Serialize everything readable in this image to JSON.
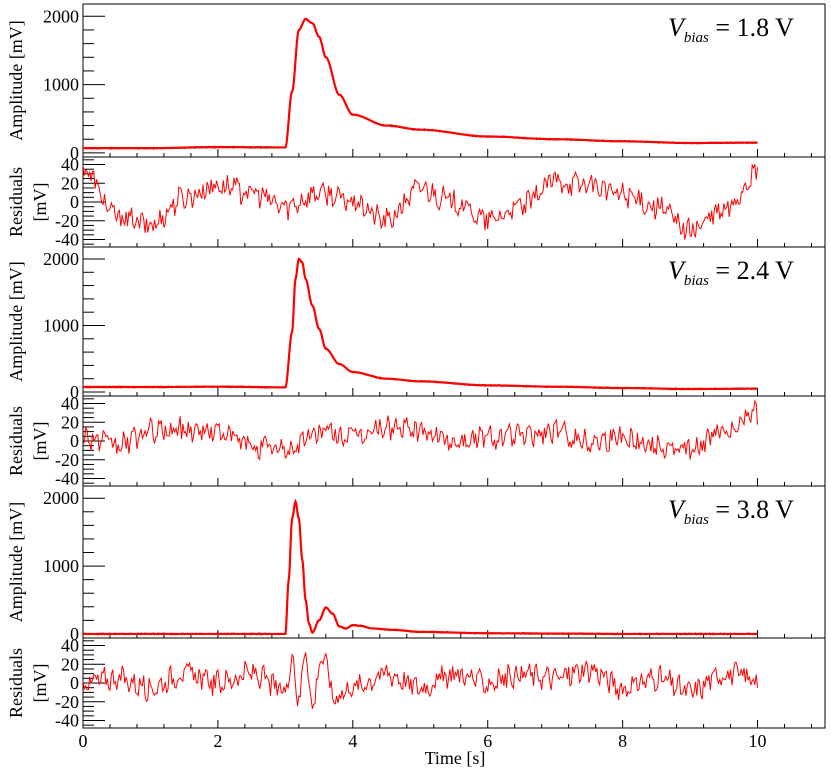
{
  "chart_data": [
    {
      "type": "line",
      "panel": "amplitude",
      "annotation": {
        "symbol": "V",
        "subscript": "bias",
        "text": " = 1.8 V"
      },
      "ylabel": "Amplitude [mV]",
      "yticks": [
        "0",
        "1000",
        "2000"
      ],
      "ylim": [
        -60,
        2180
      ],
      "xlim": [
        0,
        11
      ],
      "x": [
        0,
        1,
        2,
        3,
        3.1,
        3.2,
        3.3,
        3.4,
        3.5,
        3.6,
        3.8,
        4.0,
        4.5,
        5,
        6,
        7,
        8,
        9,
        10
      ],
      "series": [
        {
          "values": [
            70,
            70,
            85,
            80,
            900,
            1800,
            1960,
            1900,
            1700,
            1400,
            850,
            560,
            400,
            340,
            240,
            200,
            170,
            145,
            150
          ]
        }
      ],
      "colors": {
        "fit": "#ff0000",
        "data": "#000000"
      }
    },
    {
      "type": "line",
      "panel": "residuals",
      "ylabel_lines": [
        "Residuals",
        "[mV]"
      ],
      "yticks": [
        "-40",
        "-20",
        "0",
        "20",
        "40"
      ],
      "ylim": [
        -48,
        48
      ],
      "xlim": [
        0,
        11
      ],
      "x": [
        0,
        0.5,
        1,
        1.5,
        2,
        2.5,
        3,
        3.5,
        4,
        4.5,
        5,
        5.5,
        6,
        6.5,
        7,
        7.5,
        8,
        8.5,
        9,
        9.5,
        10
      ],
      "series": [
        {
          "values": [
            35,
            -15,
            -25,
            5,
            18,
            10,
            -5,
            10,
            0,
            -20,
            15,
            0,
            -20,
            -5,
            22,
            18,
            8,
            -5,
            -30,
            -10,
            30
          ]
        }
      ],
      "colors": {
        "line": "#ff0000"
      }
    },
    {
      "type": "line",
      "panel": "amplitude",
      "annotation": {
        "symbol": "V",
        "subscript": "bias",
        "text": " = 2.4 V"
      },
      "ylabel": "Amplitude [mV]",
      "yticks": [
        "0",
        "1000",
        "2000"
      ],
      "ylim": [
        -60,
        2180
      ],
      "xlim": [
        0,
        11
      ],
      "x": [
        0,
        1,
        2,
        3,
        3.1,
        3.15,
        3.2,
        3.25,
        3.3,
        3.4,
        3.5,
        3.6,
        3.8,
        4.0,
        4.5,
        5,
        6,
        7,
        8,
        9,
        10
      ],
      "series": [
        {
          "values": [
            75,
            75,
            80,
            70,
            900,
            1700,
            2000,
            1950,
            1700,
            1300,
            950,
            650,
            420,
            300,
            200,
            160,
            100,
            80,
            60,
            45,
            50
          ]
        }
      ],
      "colors": {
        "fit": "#ff0000",
        "data": "#000000"
      }
    },
    {
      "type": "line",
      "panel": "residuals",
      "ylabel_lines": [
        "Residuals",
        "[mV]"
      ],
      "yticks": [
        "-40",
        "-20",
        "0",
        "20",
        "40"
      ],
      "ylim": [
        -48,
        48
      ],
      "xlim": [
        0,
        11
      ],
      "x": [
        0,
        0.5,
        1,
        1.5,
        2,
        2.5,
        3,
        3.5,
        4,
        4.5,
        5,
        5.5,
        6,
        6.5,
        7,
        7.5,
        8,
        8.5,
        9,
        9.5,
        10
      ],
      "series": [
        {
          "values": [
            5,
            -5,
            10,
            12,
            10,
            -5,
            -10,
            10,
            5,
            15,
            10,
            0,
            5,
            5,
            10,
            0,
            5,
            -5,
            -10,
            10,
            30
          ]
        }
      ],
      "colors": {
        "line": "#ff0000"
      }
    },
    {
      "type": "line",
      "panel": "amplitude",
      "annotation": {
        "symbol": "V",
        "subscript": "bias",
        "text": " = 3.8 V"
      },
      "ylabel": "Amplitude [mV]",
      "yticks": [
        "0",
        "1000",
        "2000"
      ],
      "ylim": [
        -60,
        2180
      ],
      "xlim": [
        0,
        11
      ],
      "x": [
        0,
        1,
        2,
        3,
        3.05,
        3.1,
        3.15,
        3.2,
        3.25,
        3.3,
        3.35,
        3.4,
        3.5,
        3.6,
        3.7,
        3.8,
        3.9,
        4.0,
        4.1,
        4.3,
        4.6,
        5,
        6,
        7,
        8,
        9,
        10
      ],
      "series": [
        {
          "values": [
            0,
            0,
            0,
            0,
            800,
            1700,
            1950,
            1700,
            1100,
            500,
            150,
            20,
            200,
            390,
            300,
            110,
            80,
            130,
            120,
            80,
            60,
            30,
            10,
            5,
            0,
            0,
            0
          ]
        }
      ],
      "colors": {
        "fit": "#ff0000",
        "data": "#000000"
      }
    },
    {
      "type": "line",
      "panel": "residuals",
      "ylabel_lines": [
        "Residuals",
        "[mV]"
      ],
      "yticks": [
        "-40",
        "-20",
        "0",
        "20",
        "40"
      ],
      "ylim": [
        -48,
        48
      ],
      "xlim": [
        0,
        11
      ],
      "x": [
        0,
        0.5,
        1,
        1.5,
        2,
        2.5,
        3,
        3.1,
        3.2,
        3.3,
        3.4,
        3.5,
        3.6,
        3.7,
        4,
        4.5,
        5,
        5.5,
        6,
        6.5,
        7,
        7.5,
        8,
        8.5,
        9,
        9.5,
        10
      ],
      "series": [
        {
          "values": [
            0,
            5,
            -5,
            10,
            0,
            10,
            -10,
            30,
            -20,
            40,
            -30,
            20,
            25,
            -15,
            -5,
            10,
            -5,
            10,
            0,
            10,
            5,
            15,
            -5,
            5,
            -10,
            10,
            5
          ]
        }
      ],
      "colors": {
        "line": "#ff0000"
      }
    }
  ],
  "xaxis": {
    "label": "Time [s]",
    "ticks": [
      "0",
      "2",
      "4",
      "6",
      "8",
      "10"
    ]
  }
}
